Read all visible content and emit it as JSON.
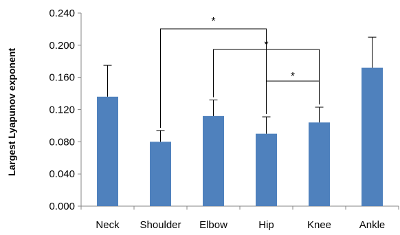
{
  "chart_data": {
    "type": "bar",
    "title": "",
    "xlabel": "",
    "ylabel": "Largest Lyapunov exponent",
    "categories": [
      "Neck",
      "Shoulder",
      "Elbow",
      "Hip",
      "Knee",
      "Ankle"
    ],
    "values": [
      0.136,
      0.08,
      0.112,
      0.09,
      0.104,
      0.172
    ],
    "errors": [
      0.039,
      0.014,
      0.02,
      0.021,
      0.019,
      0.038
    ],
    "ylim": [
      0,
      0.24
    ],
    "yticks": [
      "0.000",
      "0.040",
      "0.080",
      "0.120",
      "0.160",
      "0.200",
      "0.240"
    ],
    "bar_color": "#4f81bd",
    "grid": false,
    "significance": [
      {
        "from": "Shoulder",
        "to": "Hip",
        "label": "*"
      },
      {
        "from": "Elbow",
        "to": "Knee",
        "label": "*"
      },
      {
        "from": "Hip",
        "to": "Knee",
        "label": "*"
      }
    ]
  }
}
